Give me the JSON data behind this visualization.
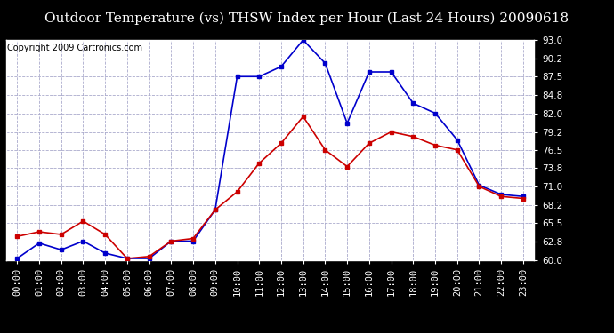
{
  "title": "Outdoor Temperature (vs) THSW Index per Hour (Last 24 Hours) 20090618",
  "copyright": "Copyright 2009 Cartronics.com",
  "hours": [
    "00:00",
    "01:00",
    "02:00",
    "03:00",
    "04:00",
    "05:00",
    "06:00",
    "07:00",
    "08:00",
    "09:00",
    "10:00",
    "11:00",
    "12:00",
    "13:00",
    "14:00",
    "15:00",
    "16:00",
    "17:00",
    "18:00",
    "19:00",
    "20:00",
    "21:00",
    "22:00",
    "23:00"
  ],
  "outdoor_temp": [
    63.5,
    64.2,
    63.8,
    65.8,
    63.8,
    60.2,
    60.5,
    62.8,
    63.2,
    67.5,
    70.2,
    74.5,
    77.5,
    81.5,
    76.5,
    74.0,
    77.5,
    79.2,
    78.5,
    77.2,
    76.5,
    71.0,
    69.5,
    69.2
  ],
  "thsw_index": [
    60.2,
    62.5,
    61.5,
    62.8,
    61.0,
    60.2,
    60.2,
    62.8,
    62.8,
    67.5,
    87.5,
    87.5,
    89.0,
    93.0,
    89.5,
    80.5,
    88.2,
    88.2,
    83.5,
    82.0,
    78.0,
    71.2,
    69.8,
    69.5
  ],
  "temp_color": "#cc0000",
  "thsw_color": "#0000cc",
  "marker": "s",
  "markersize": 3.5,
  "linewidth": 1.2,
  "ylim": [
    60.0,
    93.0
  ],
  "yticks": [
    60.0,
    62.8,
    65.5,
    68.2,
    71.0,
    73.8,
    76.5,
    79.2,
    82.0,
    84.8,
    87.5,
    90.2,
    93.0
  ],
  "grid_color": "#aaaacc",
  "grid_style": "--",
  "bg_color": "#ffffff",
  "outer_bg": "#000000",
  "title_fontsize": 11,
  "tick_fontsize": 7.5,
  "copyright_fontsize": 7
}
